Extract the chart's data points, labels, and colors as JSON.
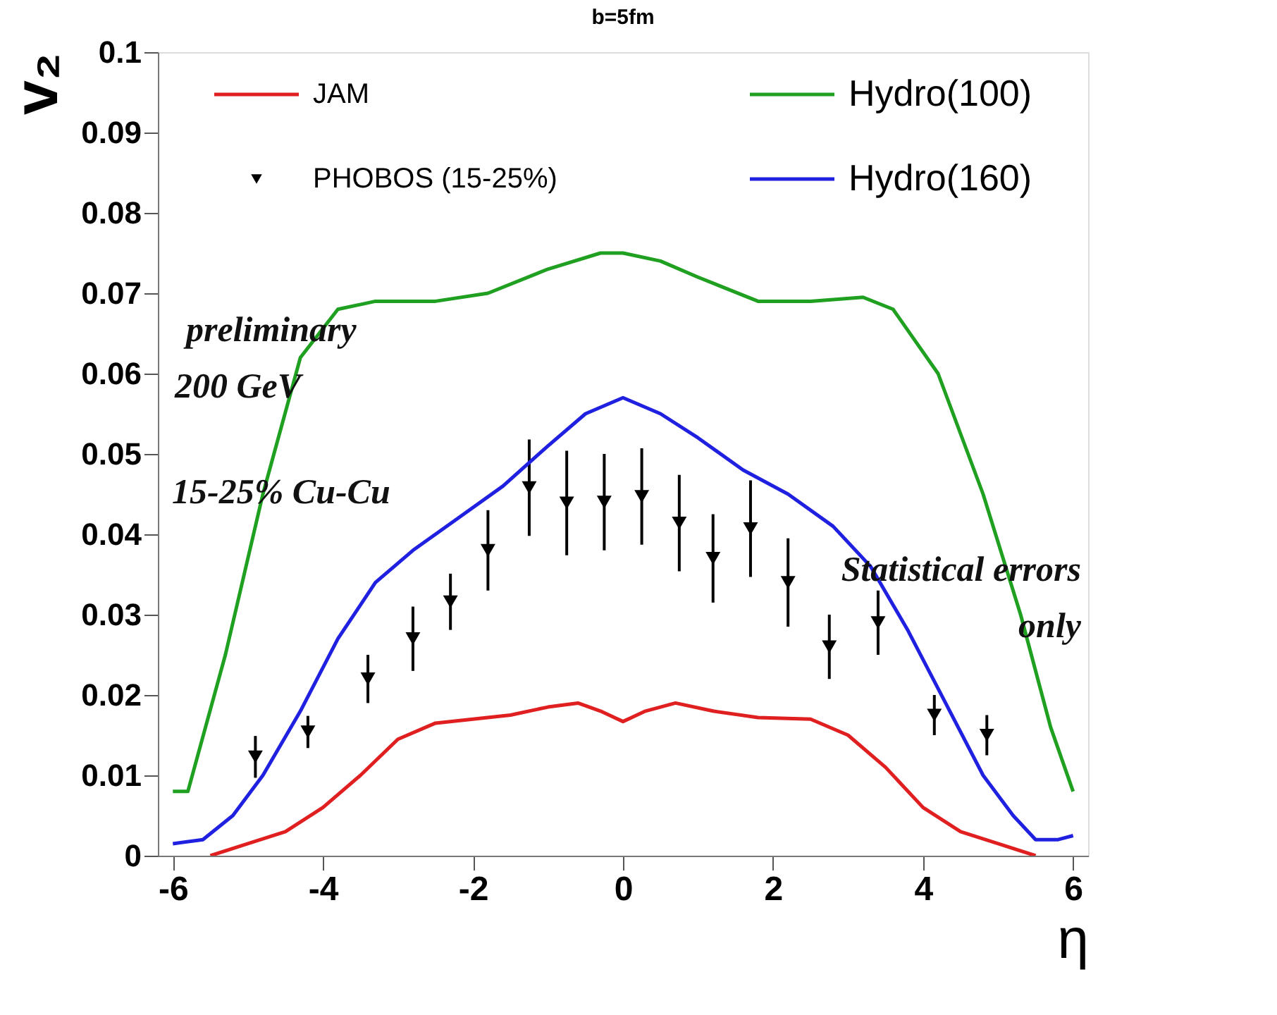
{
  "chart_data": {
    "type": "line",
    "title": "b=5fm",
    "xlabel": "η",
    "ylabel": "v₂",
    "xlim": [
      -6.2,
      6.2
    ],
    "xticks": [
      -6,
      -4,
      -2,
      0,
      2,
      4,
      6
    ],
    "ylim": [
      0,
      0.1
    ],
    "yticks": [
      0,
      0.01,
      0.02,
      0.03,
      0.04,
      0.05,
      0.06,
      0.07,
      0.08,
      0.09,
      0.1
    ],
    "grid": false,
    "legend": "top",
    "line_style": "solid",
    "marker": "none",
    "series": [
      {
        "name": "JAM",
        "color": "#e02020",
        "x": [
          -5.5,
          -5,
          -4.5,
          -4,
          -3.5,
          -3,
          -2.5,
          -2,
          -1.5,
          -1,
          -0.6,
          -0.3,
          0,
          0.3,
          0.7,
          1.2,
          1.8,
          2.5,
          3,
          3.5,
          4,
          4.5,
          5,
          5.5
        ],
        "values": [
          0,
          0.0015,
          0.003,
          0.006,
          0.01,
          0.0145,
          0.0165,
          0.017,
          0.0175,
          0.0185,
          0.019,
          0.018,
          0.0167,
          0.018,
          0.019,
          0.018,
          0.0172,
          0.017,
          0.015,
          0.011,
          0.006,
          0.003,
          0.0015,
          0
        ]
      },
      {
        "name": "PHOBOS (15-25%)",
        "color": "#000000",
        "type": "scatter",
        "marker": "triangle-down",
        "x": [
          -4.9,
          -4.2,
          -3.4,
          -2.8,
          -2.3,
          -1.8,
          -1.25,
          -0.75,
          -0.25,
          0.25,
          0.75,
          1.2,
          1.7,
          2.2,
          2.75,
          3.4,
          4.15,
          4.85
        ],
        "values": [
          0.0123,
          0.0154,
          0.022,
          0.027,
          0.0316,
          0.038,
          0.0458,
          0.0439,
          0.044,
          0.0447,
          0.0414,
          0.037,
          0.0407,
          0.034,
          0.026,
          0.029,
          0.0175,
          0.015
        ],
        "errors": [
          0.0026,
          0.002,
          0.003,
          0.004,
          0.0035,
          0.005,
          0.006,
          0.0065,
          0.006,
          0.006,
          0.006,
          0.0055,
          0.006,
          0.0055,
          0.004,
          0.004,
          0.0025,
          0.0025
        ]
      },
      {
        "name": "Hydro(100)",
        "color": "#20a020",
        "x": [
          -6,
          -5.8,
          -5.3,
          -4.8,
          -4.3,
          -3.8,
          -3.3,
          -2.5,
          -1.8,
          -1,
          -0.3,
          0,
          0.5,
          1,
          1.8,
          2.5,
          3.2,
          3.6,
          4.2,
          4.8,
          5.3,
          5.7,
          6
        ],
        "values": [
          0.008,
          0.008,
          0.025,
          0.045,
          0.062,
          0.068,
          0.069,
          0.069,
          0.07,
          0.073,
          0.075,
          0.075,
          0.074,
          0.072,
          0.069,
          0.069,
          0.0695,
          0.068,
          0.06,
          0.045,
          0.03,
          0.016,
          0.008
        ]
      },
      {
        "name": "Hydro(160)",
        "color": "#2020e0",
        "x": [
          -6,
          -5.6,
          -5.2,
          -4.8,
          -4.3,
          -3.8,
          -3.3,
          -2.8,
          -2.2,
          -1.6,
          -1,
          -0.5,
          0,
          0.5,
          1,
          1.6,
          2.2,
          2.8,
          3.3,
          3.8,
          4.3,
          4.8,
          5.2,
          5.5,
          5.8,
          6
        ],
        "values": [
          0.0015,
          0.002,
          0.005,
          0.01,
          0.018,
          0.027,
          0.034,
          0.038,
          0.042,
          0.046,
          0.051,
          0.055,
          0.057,
          0.055,
          0.052,
          0.048,
          0.045,
          0.041,
          0.036,
          0.028,
          0.019,
          0.01,
          0.005,
          0.002,
          0.002,
          0.0025
        ]
      }
    ],
    "annotations": [
      "preliminary",
      "200 GeV",
      "15-25% Cu-Cu",
      "Statistical errors only"
    ]
  }
}
